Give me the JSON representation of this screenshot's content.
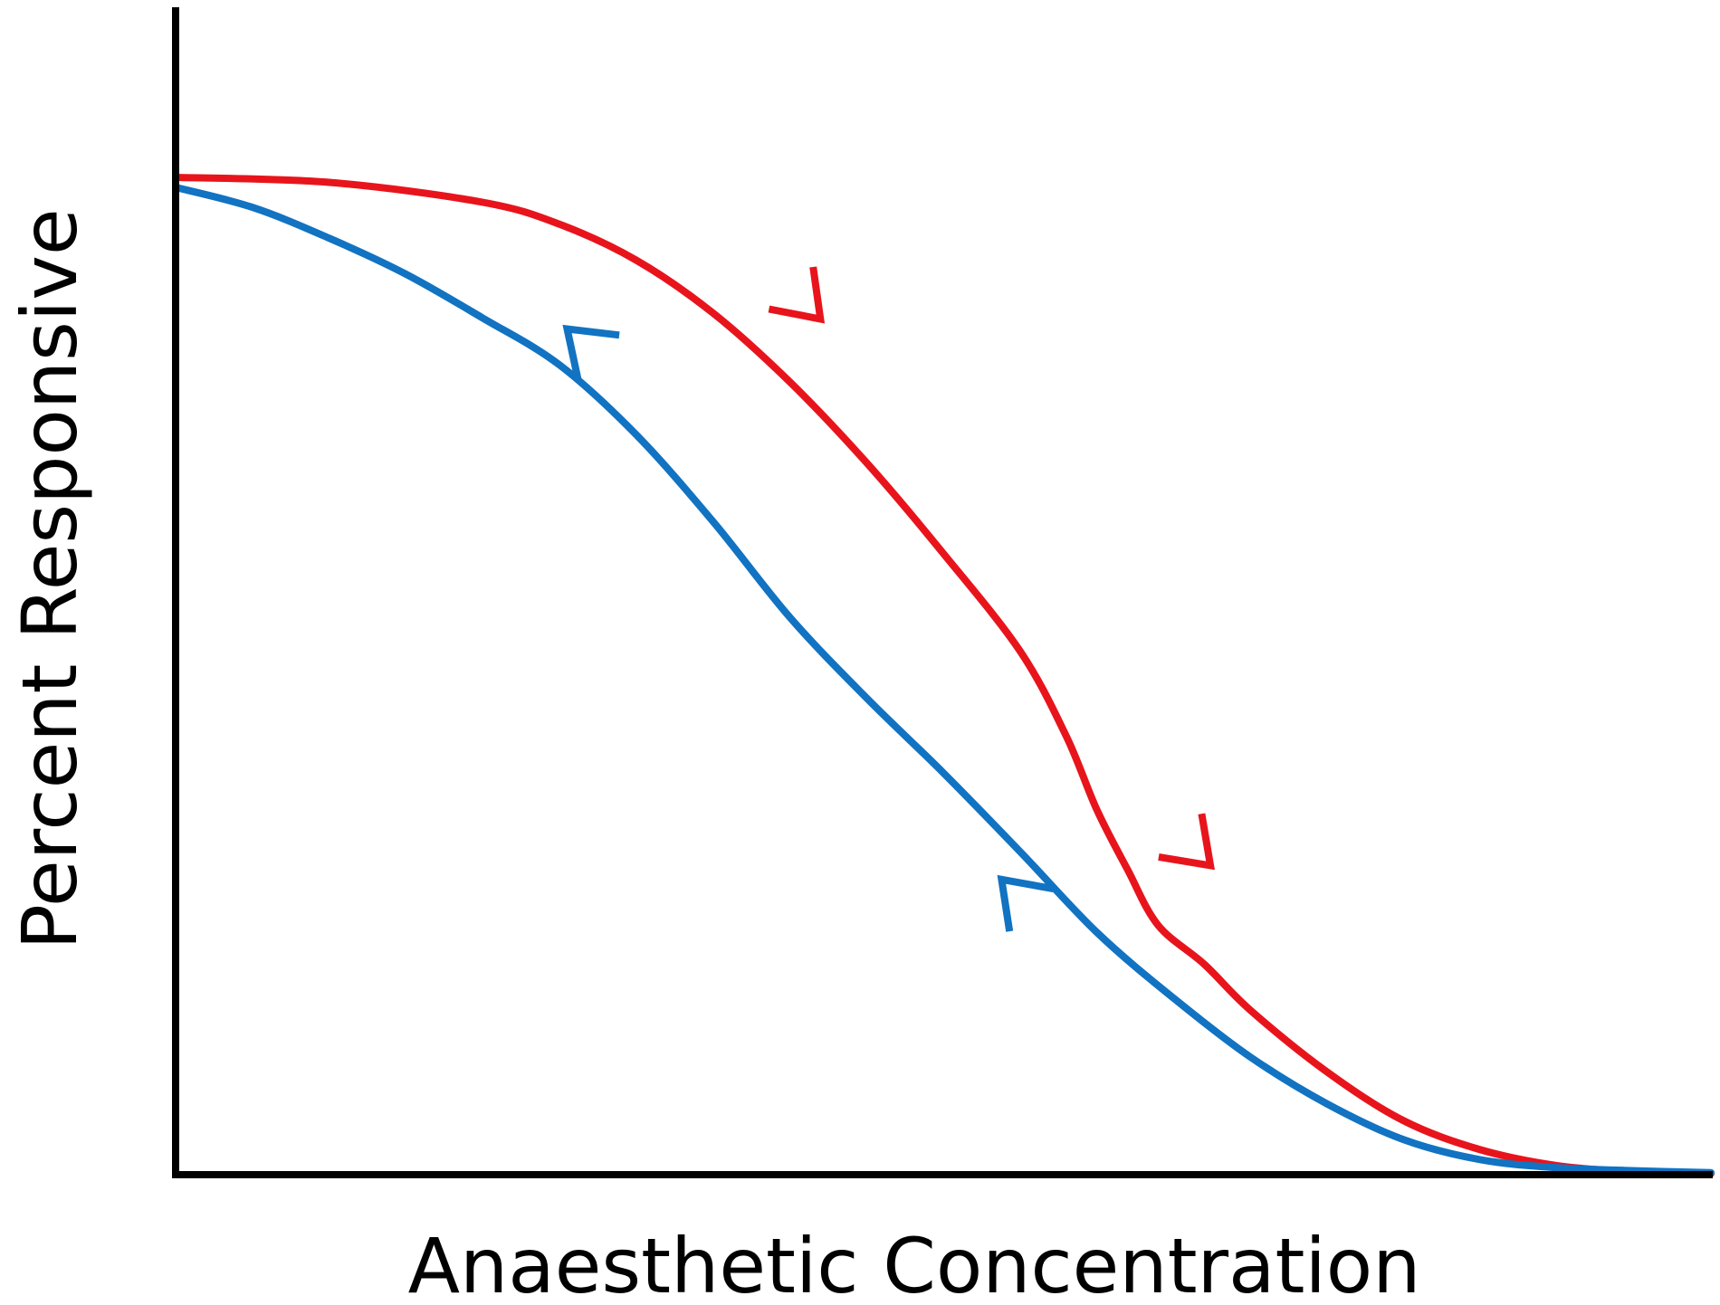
{
  "chart_data": {
    "type": "line",
    "title": "",
    "xlabel": "Anaesthetic Concentration",
    "ylabel": "Percent Responsive",
    "xlim": [
      0,
      1
    ],
    "ylim": [
      0,
      1
    ],
    "grid": false,
    "axes_color": "#000000",
    "series": [
      {
        "color": "#e8141c",
        "direction": "increasing",
        "x": [
          0,
          0.1,
          0.2,
          0.25,
          0.3,
          0.35,
          0.4,
          0.45,
          0.5,
          0.55,
          0.58,
          0.6,
          0.62,
          0.64,
          0.67,
          0.7,
          0.75,
          0.8,
          0.85,
          0.9,
          0.95,
          1.0
        ],
        "y": [
          1.0,
          0.995,
          0.975,
          0.953,
          0.917,
          0.864,
          0.795,
          0.714,
          0.623,
          0.525,
          0.44,
          0.366,
          0.306,
          0.25,
          0.211,
          0.165,
          0.103,
          0.054,
          0.025,
          0.009,
          0.003,
          0.001
        ]
      },
      {
        "color": "#1173c2",
        "direction": "decreasing",
        "x": [
          0,
          0.05,
          0.1,
          0.15,
          0.2,
          0.25,
          0.3,
          0.35,
          0.4,
          0.45,
          0.5,
          0.55,
          0.6,
          0.65,
          0.7,
          0.75,
          0.8,
          0.85,
          0.9,
          0.95,
          1.0
        ],
        "y": [
          0.99,
          0.97,
          0.939,
          0.903,
          0.859,
          0.812,
          0.742,
          0.655,
          0.559,
          0.478,
          0.403,
          0.324,
          0.243,
          0.177,
          0.118,
          0.071,
          0.035,
          0.015,
          0.007,
          0.004,
          0.002
        ]
      }
    ],
    "arrows": [
      {
        "series": 0,
        "x": 0.42,
        "y": 0.858
      },
      {
        "series": 0,
        "x": 0.674,
        "y": 0.31
      },
      {
        "series": 1,
        "x": 0.255,
        "y": 0.848
      },
      {
        "series": 1,
        "x": 0.538,
        "y": 0.296
      }
    ]
  }
}
